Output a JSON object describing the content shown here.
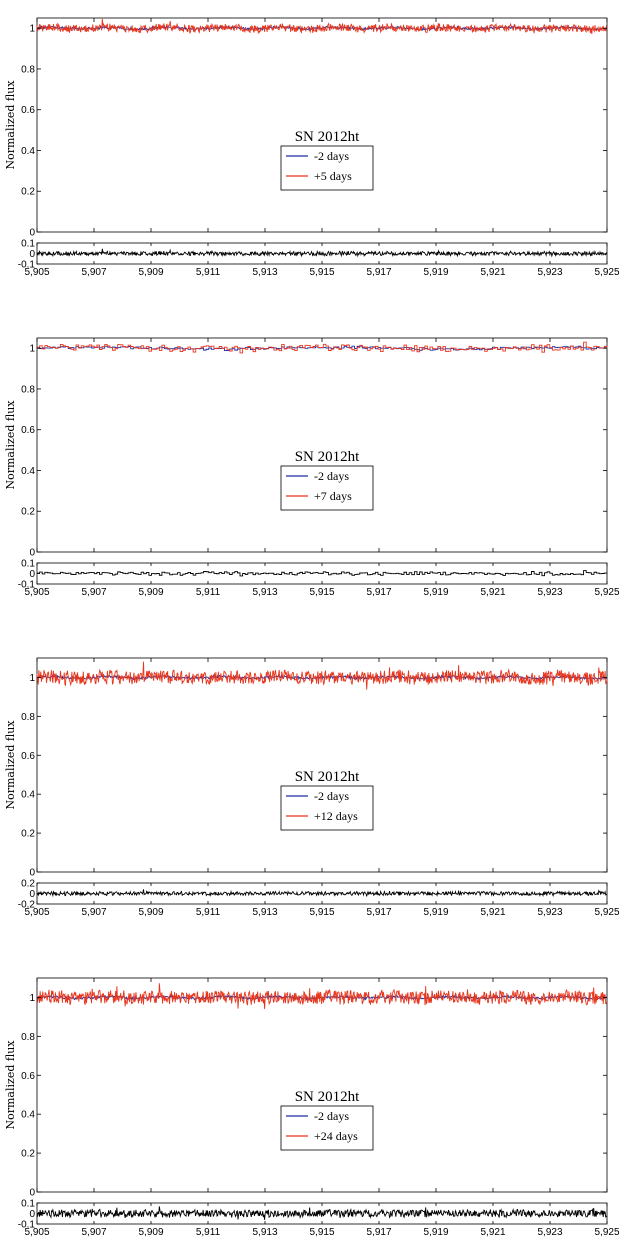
{
  "chart_data": [
    {
      "type": "line",
      "title": "SN 2012ht",
      "ylabel": "Normalized flux",
      "xlim": [
        5905,
        5925
      ],
      "ylim": [
        0,
        1.05
      ],
      "yticks": [
        0,
        0.2,
        0.4,
        0.6,
        0.8,
        1
      ],
      "ytick_labels": [
        "0",
        "0.2",
        "0.4",
        "0.6",
        "0.8",
        "1"
      ],
      "xticks": [
        5905,
        5907,
        5909,
        5911,
        5913,
        5915,
        5917,
        5919,
        5921,
        5923,
        5925
      ],
      "xtick_labels": [
        "5,905",
        "5,907",
        "5,909",
        "5,911",
        "5,913",
        "5,915",
        "5,917",
        "5,919",
        "5,921",
        "5,923",
        "5,925"
      ],
      "legend": [
        "-2 days",
        "+5 days"
      ],
      "colors": [
        "#1f2ca0",
        "#e8361d"
      ],
      "noise_amplitude": 0.018,
      "step_plot": false,
      "residual": {
        "ylim": [
          -0.1,
          0.1
        ],
        "yticks": [
          -0.1,
          0,
          0.1
        ],
        "ytick_labels": [
          "-0.1",
          "0",
          "0.1"
        ],
        "color": "#000000"
      }
    },
    {
      "type": "line",
      "title": "SN 2012ht",
      "ylabel": "Normalized flux",
      "xlim": [
        5905,
        5925
      ],
      "ylim": [
        0,
        1.05
      ],
      "yticks": [
        0,
        0.2,
        0.4,
        0.6,
        0.8,
        1
      ],
      "ytick_labels": [
        "0",
        "0.2",
        "0.4",
        "0.6",
        "0.8",
        "1"
      ],
      "xticks": [
        5905,
        5907,
        5909,
        5911,
        5913,
        5915,
        5917,
        5919,
        5921,
        5923,
        5925
      ],
      "xtick_labels": [
        "5,905",
        "5,907",
        "5,909",
        "5,911",
        "5,913",
        "5,915",
        "5,917",
        "5,919",
        "5,921",
        "5,923",
        "5,925"
      ],
      "legend": [
        "-2 days",
        "+7 days"
      ],
      "colors": [
        "#1f2ca0",
        "#e8361d"
      ],
      "noise_amplitude": 0.015,
      "step_plot": true,
      "residual": {
        "ylim": [
          -0.1,
          0.1
        ],
        "yticks": [
          -0.1,
          0,
          0.1
        ],
        "ytick_labels": [
          "-0.1",
          "0",
          "0.1"
        ],
        "color": "#000000"
      }
    },
    {
      "type": "line",
      "title": "SN 2012ht",
      "ylabel": "Normalized flux",
      "xlim": [
        5905,
        5925
      ],
      "ylim": [
        0,
        1.1
      ],
      "yticks": [
        0,
        0.2,
        0.4,
        0.6,
        0.8,
        1
      ],
      "ytick_labels": [
        "0",
        "0.2",
        "0.4",
        "0.6",
        "0.8",
        "1"
      ],
      "xticks": [
        5905,
        5907,
        5909,
        5911,
        5913,
        5915,
        5917,
        5919,
        5921,
        5923,
        5925
      ],
      "xtick_labels": [
        "5,905",
        "5,907",
        "5,909",
        "5,911",
        "5,913",
        "5,915",
        "5,917",
        "5,919",
        "5,921",
        "5,923",
        "5,925"
      ],
      "legend": [
        "-2 days",
        "+12 days"
      ],
      "colors": [
        "#1f2ca0",
        "#e8361d"
      ],
      "noise_amplitude": 0.035,
      "step_plot": false,
      "residual": {
        "ylim": [
          -0.2,
          0.2
        ],
        "yticks": [
          -0.2,
          0,
          0.2
        ],
        "ytick_labels": [
          "-0.2",
          "0",
          "0.2"
        ],
        "color": "#000000"
      }
    },
    {
      "type": "line",
      "title": "SN 2012ht",
      "ylabel": "Normalized flux",
      "xlim": [
        5905,
        5925
      ],
      "ylim": [
        0,
        1.1
      ],
      "yticks": [
        0,
        0.2,
        0.4,
        0.6,
        0.8,
        1
      ],
      "ytick_labels": [
        "0",
        "0.2",
        "0.4",
        "0.6",
        "0.8",
        "1"
      ],
      "xticks": [
        5905,
        5907,
        5909,
        5911,
        5913,
        5915,
        5917,
        5919,
        5921,
        5923,
        5925
      ],
      "xtick_labels": [
        "5,905",
        "5,907",
        "5,909",
        "5,911",
        "5,913",
        "5,915",
        "5,917",
        "5,919",
        "5,921",
        "5,923",
        "5,925"
      ],
      "legend": [
        "-2 days",
        "+24 days"
      ],
      "colors": [
        "#1f2ca0",
        "#e8361d"
      ],
      "noise_amplitude": 0.035,
      "step_plot": false,
      "residual": {
        "ylim": [
          -0.1,
          0.1
        ],
        "yticks": [
          -0.1,
          0,
          0.1
        ],
        "ytick_labels": [
          "-0.1",
          "0",
          "0.1"
        ],
        "color": "#000000"
      }
    }
  ]
}
